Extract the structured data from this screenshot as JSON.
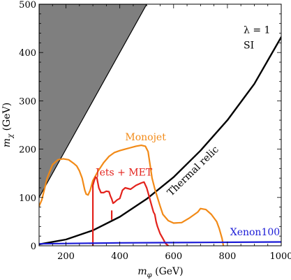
{
  "chart_data": {
    "type": "line",
    "xlabel": "m_φ (GeV)",
    "xlabel_main": "m",
    "xlabel_sub": "φ",
    "xlabel_unit": " (GeV)",
    "ylabel": "m_χ (GeV)",
    "ylabel_main": "m",
    "ylabel_sub": "χ",
    "ylabel_unit": " (GeV)",
    "xlim": [
      100,
      1000
    ],
    "ylim": [
      0,
      500
    ],
    "x_ticks": [
      200,
      400,
      600,
      800,
      1000
    ],
    "y_ticks": [
      0,
      100,
      200,
      300,
      400,
      500
    ],
    "x_tick_labels": [
      "200",
      "400",
      "600",
      "800",
      "1000"
    ],
    "y_tick_labels": [
      "0",
      "100",
      "200",
      "300",
      "400",
      "500"
    ],
    "grid": false,
    "regions": [
      {
        "name": "excluded",
        "color": "#7f7f7f",
        "polygon": [
          [
            100,
            100
          ],
          [
            100,
            500
          ],
          [
            500,
            500
          ]
        ]
      }
    ],
    "series": [
      {
        "name": "Thermal relic",
        "color": "#000000",
        "x": [
          100,
          200,
          300,
          400,
          500,
          600,
          700,
          800,
          900,
          1000
        ],
        "y": [
          3,
          13,
          32,
          60,
          97,
          142,
          197,
          260,
          335,
          432
        ]
      },
      {
        "name": "Monojet",
        "color": "#f28a17",
        "x": [
          100,
          110,
          130,
          150,
          170,
          190,
          210,
          230,
          240,
          250,
          260,
          270,
          275,
          282,
          290,
          300,
          320,
          340,
          360,
          380,
          400,
          420,
          440,
          460,
          480,
          495,
          505,
          512,
          520,
          530,
          540,
          550,
          560,
          580,
          600,
          630,
          660,
          690,
          700,
          720,
          740,
          760,
          770,
          780,
          785
        ],
        "y": [
          82,
          95,
          140,
          168,
          178,
          180,
          178,
          170,
          165,
          155,
          140,
          115,
          107,
          105,
          115,
          135,
          155,
          172,
          185,
          193,
          197,
          200,
          203,
          206,
          208,
          206,
          195,
          170,
          140,
          118,
          100,
          82,
          65,
          52,
          47,
          48,
          58,
          70,
          77,
          75,
          65,
          50,
          35,
          15,
          0
        ]
      },
      {
        "name": "Jets + MET",
        "color": "#e3221c",
        "x": [
          300,
          300,
          305,
          310,
          315,
          322,
          330,
          340,
          350,
          360,
          365,
          370,
          375,
          380,
          390,
          400,
          410,
          420,
          440,
          460,
          480,
          490,
          500,
          505,
          510,
          515,
          520,
          525,
          530,
          535,
          540,
          550,
          560,
          570,
          580
        ],
        "y": [
          0,
          125,
          135,
          142,
          140,
          120,
          110,
          110,
          113,
          112,
          103,
          97,
          88,
          90,
          95,
          98,
          115,
          120,
          117,
          125,
          130,
          132,
          120,
          110,
          100,
          90,
          80,
          70,
          65,
          50,
          40,
          25,
          15,
          5,
          0
        ]
      },
      {
        "name": "Jets + MET spur",
        "color": "#e3221c",
        "x": [
          370,
          370
        ],
        "y": [
          55,
          72
        ]
      },
      {
        "name": "Xenon100",
        "color": "#1a1ad6",
        "x": [
          100,
          400,
          700,
          1000
        ],
        "y": [
          4,
          6,
          7,
          8
        ]
      }
    ],
    "annotations": [
      {
        "name": "lambda",
        "text": "λ = 1",
        "color": "#000000"
      },
      {
        "name": "si",
        "text": "SI",
        "color": "#000000"
      },
      {
        "name": "monojet",
        "text": "Monojet",
        "color": "#f28a17"
      },
      {
        "name": "jets-met",
        "text": "Jets + MET",
        "color": "#e3221c"
      },
      {
        "name": "thermal-relic",
        "text": "Thermal relic",
        "color": "#000000"
      },
      {
        "name": "xenon100",
        "text": "Xenon100",
        "color": "#1a1ad6"
      }
    ]
  }
}
